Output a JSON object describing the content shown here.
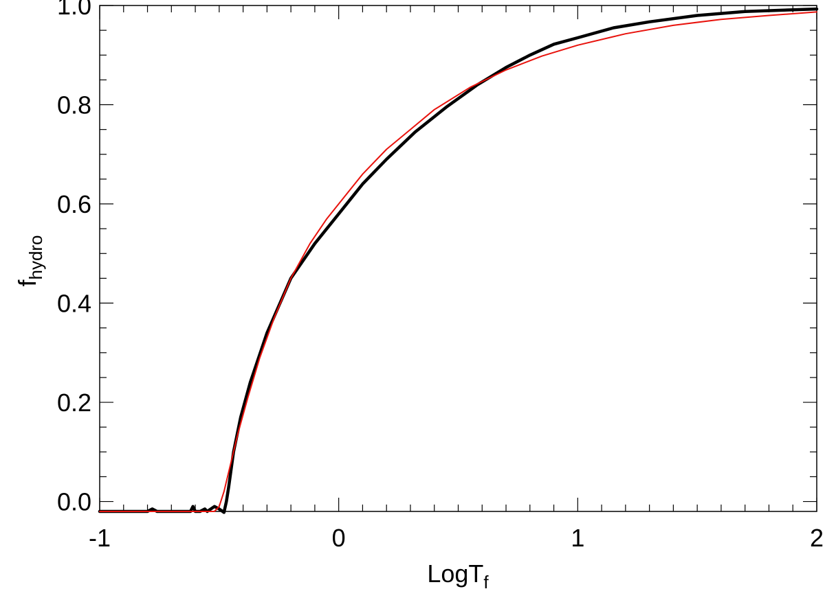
{
  "chart_data": {
    "type": "line",
    "title": "",
    "xlabel": "LogT",
    "xlabel_sub": "f",
    "ylabel": "f",
    "ylabel_sub": "hydro",
    "xlim": [
      -1,
      2
    ],
    "ylim": [
      -0.02,
      1.0
    ],
    "x_ticks": [
      -1,
      0,
      1,
      2
    ],
    "x_tick_labels": [
      "-1",
      "0",
      "1",
      "2"
    ],
    "y_ticks": [
      0.0,
      0.2,
      0.4,
      0.6,
      0.8,
      1.0
    ],
    "y_tick_labels": [
      "0.0",
      "0.2",
      "0.4",
      "0.6",
      "0.8",
      "1.0"
    ],
    "grid": false,
    "legend": "none",
    "series": [
      {
        "color": "#000000",
        "style": "thick",
        "x": [
          -1.0,
          -0.8,
          -0.78,
          -0.76,
          -0.7,
          -0.62,
          -0.61,
          -0.6,
          -0.58,
          -0.56,
          -0.55,
          -0.52,
          -0.5,
          -0.48,
          -0.47,
          -0.46,
          -0.44,
          -0.41,
          -0.37,
          -0.3,
          -0.2,
          -0.1,
          0.0,
          0.1,
          0.2,
          0.32,
          0.45,
          0.58,
          0.7,
          0.8,
          0.9,
          1.0,
          1.15,
          1.3,
          1.5,
          1.7,
          2.0
        ],
        "y": [
          -0.02,
          -0.02,
          -0.015,
          -0.02,
          -0.02,
          -0.02,
          -0.01,
          -0.02,
          -0.02,
          -0.015,
          -0.02,
          -0.01,
          -0.015,
          -0.022,
          0.0,
          0.03,
          0.1,
          0.17,
          0.24,
          0.34,
          0.45,
          0.52,
          0.58,
          0.64,
          0.69,
          0.745,
          0.795,
          0.84,
          0.875,
          0.9,
          0.922,
          0.935,
          0.955,
          0.967,
          0.98,
          0.988,
          0.993
        ]
      },
      {
        "color": "#e8120c",
        "style": "thin",
        "x": [
          -1.0,
          -0.6,
          -0.52,
          -0.5,
          -0.48,
          -0.45,
          -0.42,
          -0.38,
          -0.33,
          -0.27,
          -0.2,
          -0.12,
          -0.05,
          0.0,
          0.1,
          0.2,
          0.3,
          0.4,
          0.55,
          0.7,
          0.85,
          1.0,
          1.2,
          1.4,
          1.6,
          1.8,
          2.0
        ],
        "y": [
          -0.02,
          -0.02,
          -0.02,
          -0.01,
          0.02,
          0.08,
          0.14,
          0.21,
          0.29,
          0.37,
          0.45,
          0.52,
          0.57,
          0.6,
          0.66,
          0.71,
          0.75,
          0.79,
          0.835,
          0.87,
          0.898,
          0.92,
          0.943,
          0.96,
          0.972,
          0.98,
          0.987
        ]
      }
    ]
  }
}
